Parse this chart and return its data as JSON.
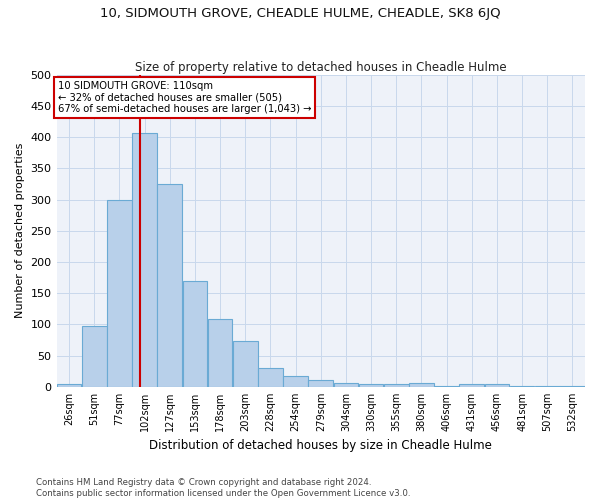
{
  "title": "10, SIDMOUTH GROVE, CHEADLE HULME, CHEADLE, SK8 6JQ",
  "subtitle": "Size of property relative to detached houses in Cheadle Hulme",
  "xlabel": "Distribution of detached houses by size in Cheadle Hulme",
  "ylabel": "Number of detached properties",
  "bar_heights": [
    5,
    97,
    300,
    407,
    325,
    170,
    108,
    73,
    30,
    18,
    11,
    7,
    5,
    5,
    7,
    2,
    5,
    5,
    2,
    2,
    2
  ],
  "bin_labels": [
    "26sqm",
    "51sqm",
    "77sqm",
    "102sqm",
    "127sqm",
    "153sqm",
    "178sqm",
    "203sqm",
    "228sqm",
    "254sqm",
    "279sqm",
    "304sqm",
    "330sqm",
    "355sqm",
    "380sqm",
    "406sqm",
    "431sqm",
    "456sqm",
    "481sqm",
    "507sqm",
    "532sqm"
  ],
  "bar_color": "#b8d0ea",
  "bar_edge_color": "#6aaad4",
  "grid_color": "#c8d8ec",
  "bg_color": "#eef2f9",
  "vline_color": "#cc0000",
  "annotation_text": "10 SIDMOUTH GROVE: 110sqm\n← 32% of detached houses are smaller (505)\n67% of semi-detached houses are larger (1,043) →",
  "annotation_box_color": "#cc0000",
  "ylim": [
    0,
    500
  ],
  "yticks": [
    0,
    50,
    100,
    150,
    200,
    250,
    300,
    350,
    400,
    450,
    500
  ],
  "title_fontsize": 9.5,
  "subtitle_fontsize": 8.5,
  "footer_line1": "Contains HM Land Registry data © Crown copyright and database right 2024.",
  "footer_line2": "Contains public sector information licensed under the Open Government Licence v3.0."
}
